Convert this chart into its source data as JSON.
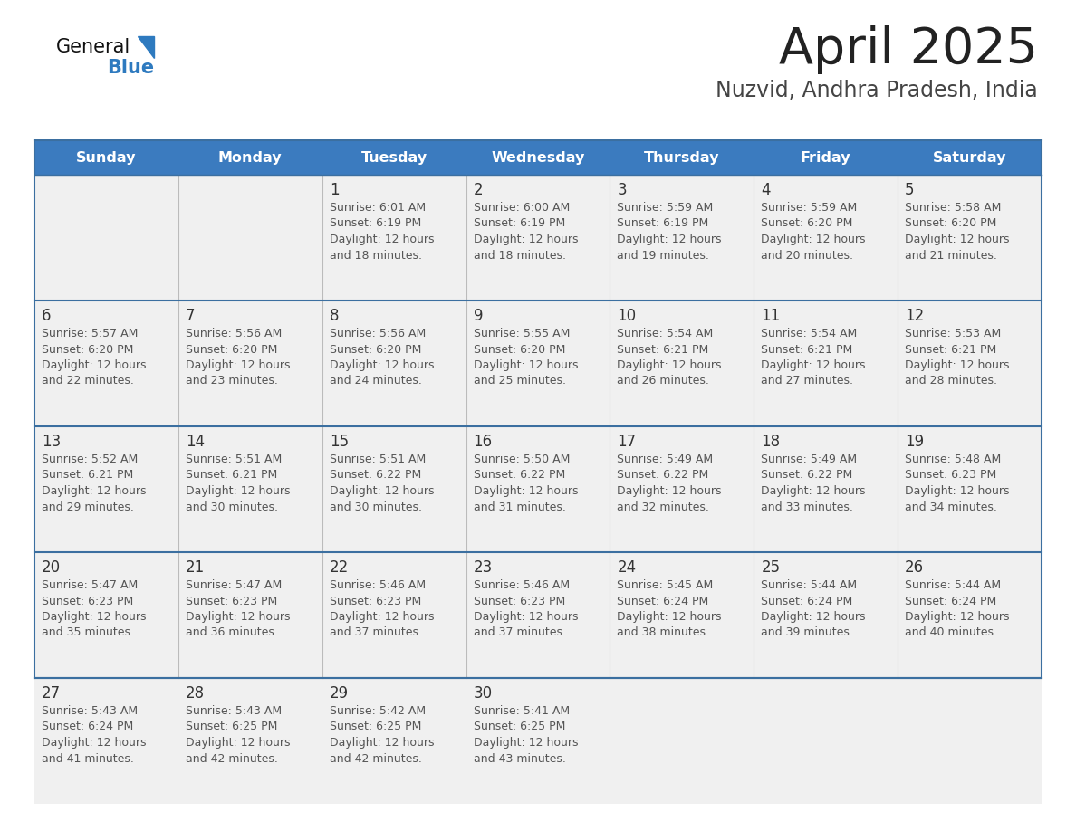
{
  "title": "April 2025",
  "subtitle": "Nuzvid, Andhra Pradesh, India",
  "days_of_week": [
    "Sunday",
    "Monday",
    "Tuesday",
    "Wednesday",
    "Thursday",
    "Friday",
    "Saturday"
  ],
  "header_bg": "#3b7bbf",
  "header_text": "#ffffff",
  "row_bg": "#f0f0f0",
  "cell_border_color": "#3b6fa0",
  "row_separator_color": "#3b6fa0",
  "title_color": "#222222",
  "subtitle_color": "#444444",
  "day_number_color": "#333333",
  "cell_text_color": "#555555",
  "logo_general_color": "#111111",
  "logo_blue_color": "#2e7abf",
  "calendar_data": [
    [
      {
        "day": "",
        "sunrise": "",
        "sunset": "",
        "daylight_min": 0
      },
      {
        "day": "",
        "sunrise": "",
        "sunset": "",
        "daylight_min": 0
      },
      {
        "day": "1",
        "sunrise": "6:01 AM",
        "sunset": "6:19 PM",
        "daylight_min": 1098
      },
      {
        "day": "2",
        "sunrise": "6:00 AM",
        "sunset": "6:19 PM",
        "daylight_min": 1098
      },
      {
        "day": "3",
        "sunrise": "5:59 AM",
        "sunset": "6:19 PM",
        "daylight_min": 1099
      },
      {
        "day": "4",
        "sunrise": "5:59 AM",
        "sunset": "6:20 PM",
        "daylight_min": 1100
      },
      {
        "day": "5",
        "sunrise": "5:58 AM",
        "sunset": "6:20 PM",
        "daylight_min": 1101
      }
    ],
    [
      {
        "day": "6",
        "sunrise": "5:57 AM",
        "sunset": "6:20 PM",
        "daylight_min": 1102
      },
      {
        "day": "7",
        "sunrise": "5:56 AM",
        "sunset": "6:20 PM",
        "daylight_min": 1103
      },
      {
        "day": "8",
        "sunrise": "5:56 AM",
        "sunset": "6:20 PM",
        "daylight_min": 1104
      },
      {
        "day": "9",
        "sunrise": "5:55 AM",
        "sunset": "6:20 PM",
        "daylight_min": 1105
      },
      {
        "day": "10",
        "sunrise": "5:54 AM",
        "sunset": "6:21 PM",
        "daylight_min": 1106
      },
      {
        "day": "11",
        "sunrise": "5:54 AM",
        "sunset": "6:21 PM",
        "daylight_min": 1107
      },
      {
        "day": "12",
        "sunrise": "5:53 AM",
        "sunset": "6:21 PM",
        "daylight_min": 1108
      }
    ],
    [
      {
        "day": "13",
        "sunrise": "5:52 AM",
        "sunset": "6:21 PM",
        "daylight_min": 1109
      },
      {
        "day": "14",
        "sunrise": "5:51 AM",
        "sunset": "6:21 PM",
        "daylight_min": 1110
      },
      {
        "day": "15",
        "sunrise": "5:51 AM",
        "sunset": "6:22 PM",
        "daylight_min": 1110
      },
      {
        "day": "16",
        "sunrise": "5:50 AM",
        "sunset": "6:22 PM",
        "daylight_min": 1111
      },
      {
        "day": "17",
        "sunrise": "5:49 AM",
        "sunset": "6:22 PM",
        "daylight_min": 1112
      },
      {
        "day": "18",
        "sunrise": "5:49 AM",
        "sunset": "6:22 PM",
        "daylight_min": 1113
      },
      {
        "day": "19",
        "sunrise": "5:48 AM",
        "sunset": "6:23 PM",
        "daylight_min": 1114
      }
    ],
    [
      {
        "day": "20",
        "sunrise": "5:47 AM",
        "sunset": "6:23 PM",
        "daylight_min": 1115
      },
      {
        "day": "21",
        "sunrise": "5:47 AM",
        "sunset": "6:23 PM",
        "daylight_min": 1116
      },
      {
        "day": "22",
        "sunrise": "5:46 AM",
        "sunset": "6:23 PM",
        "daylight_min": 1117
      },
      {
        "day": "23",
        "sunrise": "5:46 AM",
        "sunset": "6:23 PM",
        "daylight_min": 1117
      },
      {
        "day": "24",
        "sunrise": "5:45 AM",
        "sunset": "6:24 PM",
        "daylight_min": 1118
      },
      {
        "day": "25",
        "sunrise": "5:44 AM",
        "sunset": "6:24 PM",
        "daylight_min": 1119
      },
      {
        "day": "26",
        "sunrise": "5:44 AM",
        "sunset": "6:24 PM",
        "daylight_min": 1120
      }
    ],
    [
      {
        "day": "27",
        "sunrise": "5:43 AM",
        "sunset": "6:24 PM",
        "daylight_min": 1121
      },
      {
        "day": "28",
        "sunrise": "5:43 AM",
        "sunset": "6:25 PM",
        "daylight_min": 1122
      },
      {
        "day": "29",
        "sunrise": "5:42 AM",
        "sunset": "6:25 PM",
        "daylight_min": 1122
      },
      {
        "day": "30",
        "sunrise": "5:41 AM",
        "sunset": "6:25 PM",
        "daylight_min": 1123
      },
      {
        "day": "",
        "sunrise": "",
        "sunset": "",
        "daylight_min": 0
      },
      {
        "day": "",
        "sunrise": "",
        "sunset": "",
        "daylight_min": 0
      },
      {
        "day": "",
        "sunrise": "",
        "sunset": "",
        "daylight_min": 0
      }
    ]
  ],
  "daylight_labels": {
    "1098": "and 18 minutes.",
    "1099": "and 19 minutes.",
    "1100": "and 20 minutes.",
    "1101": "and 21 minutes.",
    "1102": "and 22 minutes.",
    "1103": "and 23 minutes.",
    "1104": "and 24 minutes.",
    "1105": "and 25 minutes.",
    "1106": "and 26 minutes.",
    "1107": "and 27 minutes.",
    "1108": "and 28 minutes.",
    "1109": "and 29 minutes.",
    "1110": "and 30 minutes.",
    "1111": "and 31 minutes.",
    "1112": "and 32 minutes.",
    "1113": "and 33 minutes.",
    "1114": "and 34 minutes.",
    "1115": "and 35 minutes.",
    "1116": "and 36 minutes.",
    "1117": "and 37 minutes.",
    "1118": "and 38 minutes.",
    "1119": "and 39 minutes.",
    "1120": "and 40 minutes.",
    "1121": "and 41 minutes.",
    "1122": "and 42 minutes.",
    "1123": "and 43 minutes."
  }
}
